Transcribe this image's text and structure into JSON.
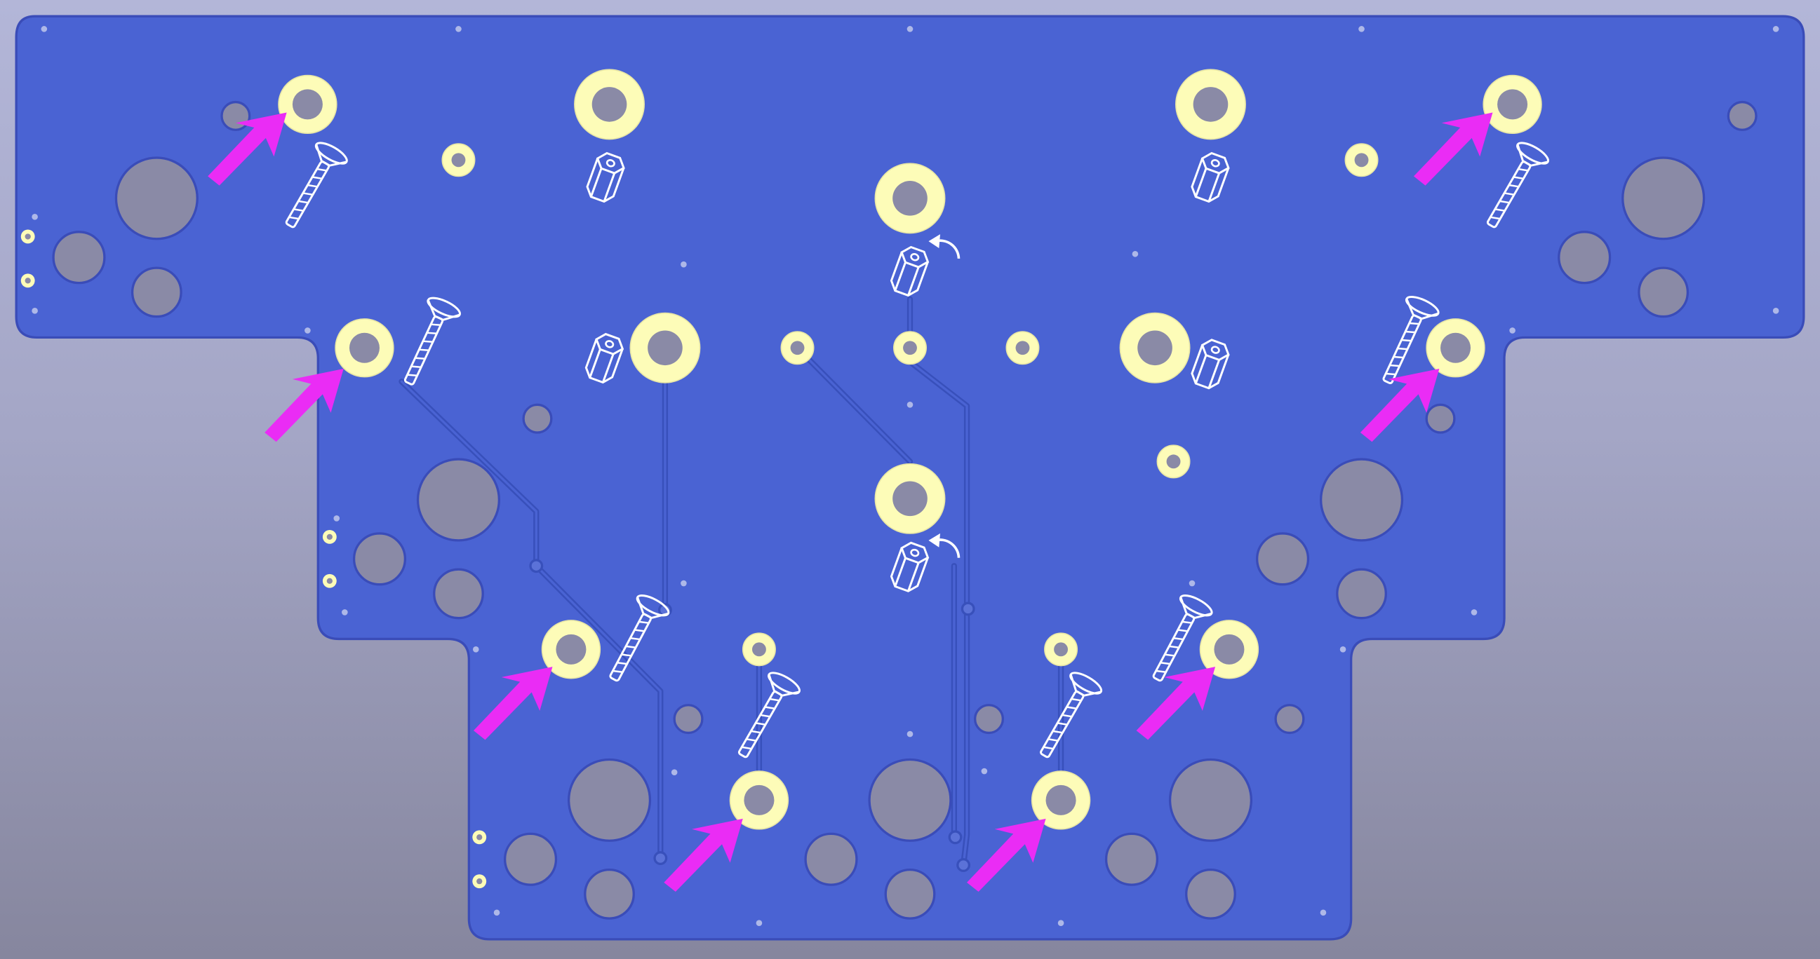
{
  "view": {
    "background_top": "#b3b6d8",
    "background_bottom": "#86869e"
  },
  "board": {
    "outline": "plate-outline",
    "copper_color": "#4a63d3",
    "copper_edge": "#3a4cb8",
    "trace_color": "#3e52c0",
    "hole_fill": "#8a8aa6",
    "pad_color": "#fdfcb8",
    "arrow_color": "#ea2cf5",
    "silkscreen_color": "#ffffff"
  },
  "legend": {
    "screw_icon": "countersunk-screw-icon",
    "standoff_icon": "hex-standoff-icon",
    "rotate_icon": "rotate-arrow-icon",
    "pointer_icon": "magenta-arrow-icon"
  }
}
